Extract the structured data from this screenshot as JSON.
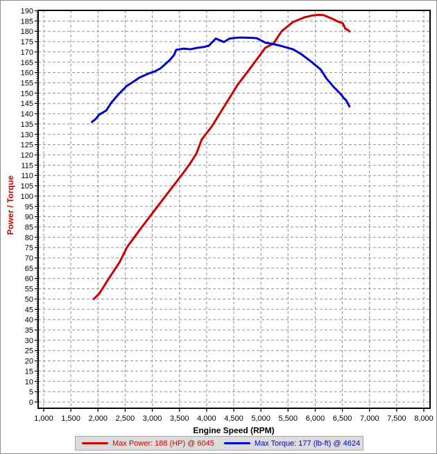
{
  "chart_data": {
    "type": "line",
    "title": "",
    "xlabel": "Engine Speed (RPM)",
    "ylabel": "Power / Torque",
    "x_axis": {
      "min": 1000,
      "max": 8000,
      "tick_step": 500,
      "tick_labels": [
        "1,000",
        "1,500",
        "2,000",
        "2,500",
        "3,000",
        "3,500",
        "4,000",
        "4,500",
        "5,000",
        "5,500",
        "6,000",
        "6,500",
        "7,000",
        "7,500",
        "8,000"
      ]
    },
    "y_axis": {
      "min": 0,
      "max": 190,
      "tick_step": 5,
      "tick_labels": [
        "0",
        "5",
        "10",
        "15",
        "20",
        "25",
        "30",
        "35",
        "40",
        "45",
        "50",
        "55",
        "60",
        "65",
        "70",
        "75",
        "80",
        "85",
        "90",
        "95",
        "100",
        "105",
        "110",
        "115",
        "120",
        "125",
        "130",
        "135",
        "140",
        "145",
        "150",
        "155",
        "160",
        "165",
        "170",
        "175",
        "180",
        "185",
        "190"
      ]
    },
    "grid": true,
    "legend_position": "bottom",
    "series": [
      {
        "name": "Max Power: 188 (HP) @ 6045",
        "unit": "HP",
        "color": "#cc0000",
        "max_value": 188,
        "max_at_rpm": 6045,
        "points": [
          [
            1920,
            50
          ],
          [
            2020,
            52.5
          ],
          [
            2200,
            60
          ],
          [
            2400,
            68
          ],
          [
            2530,
            75
          ],
          [
            2780,
            84
          ],
          [
            3040,
            93
          ],
          [
            3300,
            102
          ],
          [
            3550,
            110.5
          ],
          [
            3700,
            116
          ],
          [
            3810,
            120.5
          ],
          [
            3910,
            127.5
          ],
          [
            4100,
            134
          ],
          [
            4300,
            142.5
          ],
          [
            4570,
            154
          ],
          [
            4830,
            163
          ],
          [
            5080,
            172
          ],
          [
            5230,
            174
          ],
          [
            5380,
            180
          ],
          [
            5590,
            184.5
          ],
          [
            5800,
            186.8
          ],
          [
            5950,
            187.7
          ],
          [
            6045,
            188
          ],
          [
            6150,
            187.9
          ],
          [
            6280,
            186.5
          ],
          [
            6440,
            184.5
          ],
          [
            6510,
            183.9
          ],
          [
            6550,
            181.4
          ],
          [
            6620,
            180.3
          ],
          [
            6630,
            180
          ]
        ]
      },
      {
        "name": "Max Torque: 177 (lb-ft) @ 4624",
        "unit": "lb-ft",
        "color": "#0000cc",
        "max_value": 177,
        "max_at_rpm": 4624,
        "points": [
          [
            1890,
            136
          ],
          [
            1960,
            137.5
          ],
          [
            2020,
            139.5
          ],
          [
            2070,
            140.3
          ],
          [
            2150,
            141.5
          ],
          [
            2250,
            145.5
          ],
          [
            2380,
            149.5
          ],
          [
            2530,
            153.5
          ],
          [
            2650,
            155.5
          ],
          [
            2760,
            157.5
          ],
          [
            2930,
            159.5
          ],
          [
            3040,
            160.5
          ],
          [
            3150,
            162
          ],
          [
            3320,
            166
          ],
          [
            3400,
            168.5
          ],
          [
            3440,
            171
          ],
          [
            3570,
            171.6
          ],
          [
            3700,
            171.3
          ],
          [
            3830,
            172
          ],
          [
            3950,
            172.4
          ],
          [
            4040,
            173
          ],
          [
            4170,
            176.5
          ],
          [
            4320,
            174.8
          ],
          [
            4420,
            176.5
          ],
          [
            4570,
            176.9
          ],
          [
            4624,
            177
          ],
          [
            4870,
            176.8
          ],
          [
            4930,
            176.6
          ],
          [
            5080,
            174.5
          ],
          [
            5230,
            173.8
          ],
          [
            5360,
            173
          ],
          [
            5590,
            171.3
          ],
          [
            5740,
            169
          ],
          [
            5930,
            165.2
          ],
          [
            6100,
            161.5
          ],
          [
            6210,
            157
          ],
          [
            6340,
            153
          ],
          [
            6470,
            149.5
          ],
          [
            6530,
            147.5
          ],
          [
            6570,
            146.5
          ],
          [
            6620,
            144
          ],
          [
            6630,
            143.5
          ]
        ]
      }
    ]
  },
  "colors": {
    "grid": "#8f8f8f",
    "frame": "#000000",
    "tick_text": "#000000",
    "legend_background": "#dcdcdc",
    "legend_border": "#a8a8a8",
    "window_border": "#8c8c8c",
    "power_red": "#cc0000",
    "torque_blue": "#0000cc"
  }
}
